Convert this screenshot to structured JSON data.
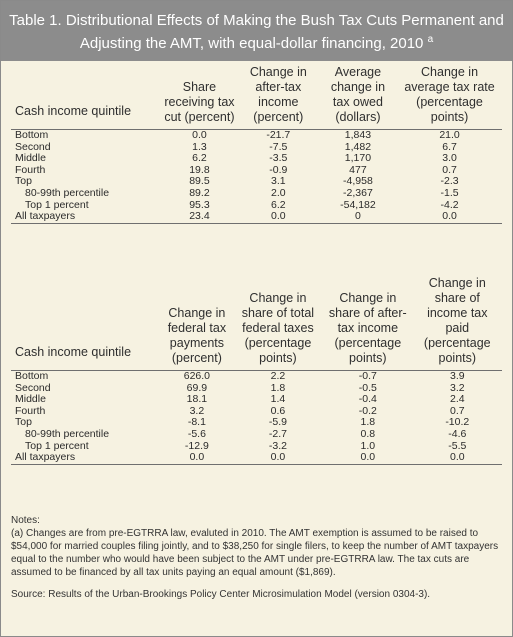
{
  "title": {
    "line1": "Table 1. Distributional Effects of Making the Bush Tax Cuts Permanent and",
    "line2": "Adjusting the AMT, with equal-dollar financing, 2010",
    "footnote_mark": "a"
  },
  "table1": {
    "headers": [
      "Cash income quintile",
      "Share receiving tax cut (percent)",
      "Change in after-tax income (percent)",
      "Average change in tax owed (dollars)",
      "Change in average tax rate (percentage points)"
    ],
    "rows": [
      {
        "label": "Bottom",
        "values": [
          "0.0",
          "-21.7",
          "1,843",
          "21.0"
        ]
      },
      {
        "label": "Second",
        "values": [
          "1.3",
          "-7.5",
          "1,482",
          "6.7"
        ]
      },
      {
        "label": "Middle",
        "values": [
          "6.2",
          "-3.5",
          "1,170",
          "3.0"
        ]
      },
      {
        "label": "Fourth",
        "values": [
          "19.8",
          "-0.9",
          "477",
          "0.7"
        ]
      },
      {
        "label": "Top",
        "values": [
          "89.5",
          "3.1",
          "-4,958",
          "-2.3"
        ]
      },
      {
        "label": "80-99th percentile",
        "values": [
          "89.2",
          "2.0",
          "-2,367",
          "-1.5"
        ]
      },
      {
        "label": "Top 1 percent",
        "values": [
          "95.3",
          "6.2",
          "-54,182",
          "-4.2"
        ]
      },
      {
        "label": "All taxpayers",
        "values": [
          "23.4",
          "0.0",
          "0",
          "0.0"
        ]
      }
    ]
  },
  "table2": {
    "headers": [
      "Cash income quintile",
      "Change in federal tax payments (percent)",
      "Change in share of total federal taxes (percentage points)",
      "Change in share of after-tax income (percentage points)",
      "Change in share of income tax paid (percentage points)"
    ],
    "rows": [
      {
        "label": "Bottom",
        "values": [
          "626.0",
          "2.2",
          "-0.7",
          "3.9"
        ]
      },
      {
        "label": "Second",
        "values": [
          "69.9",
          "1.8",
          "-0.5",
          "3.2"
        ]
      },
      {
        "label": "Middle",
        "values": [
          "18.1",
          "1.4",
          "-0.4",
          "2.4"
        ]
      },
      {
        "label": "Fourth",
        "values": [
          "3.2",
          "0.6",
          "-0.2",
          "0.7"
        ]
      },
      {
        "label": "Top",
        "values": [
          "-8.1",
          "-5.9",
          "1.8",
          "-10.2"
        ]
      },
      {
        "label": "80-99th percentile",
        "values": [
          "-5.6",
          "-2.7",
          "0.8",
          "-4.6"
        ]
      },
      {
        "label": "Top 1 percent",
        "values": [
          "-12.9",
          "-3.2",
          "1.0",
          "-5.5"
        ]
      },
      {
        "label": "All taxpayers",
        "values": [
          "0.0",
          "0.0",
          "0.0",
          "0.0"
        ]
      }
    ]
  },
  "notes": {
    "heading": "Notes:",
    "note_a": "(a) Changes are from pre-EGTRRA law, evaluted in 2010. The AMT exemption is assumed to be raised to $54,000 for married couples filing jointly, and to $38,250 for single filers, to keep the number of AMT taxpayers equal to the number who would have been subject to the AMT under pre-EGTRRA law. The tax cuts are assumed to be financed by all tax units paying an equal amount ($1,869).",
    "source": "Source: Results of the Urban-Brookings Policy Center Microsimulation Model (version 0304-3)."
  },
  "colors": {
    "title_bg": "#8c8c8c",
    "panel_bg": "#f6f2e1",
    "rule": "#6f6f6f"
  }
}
